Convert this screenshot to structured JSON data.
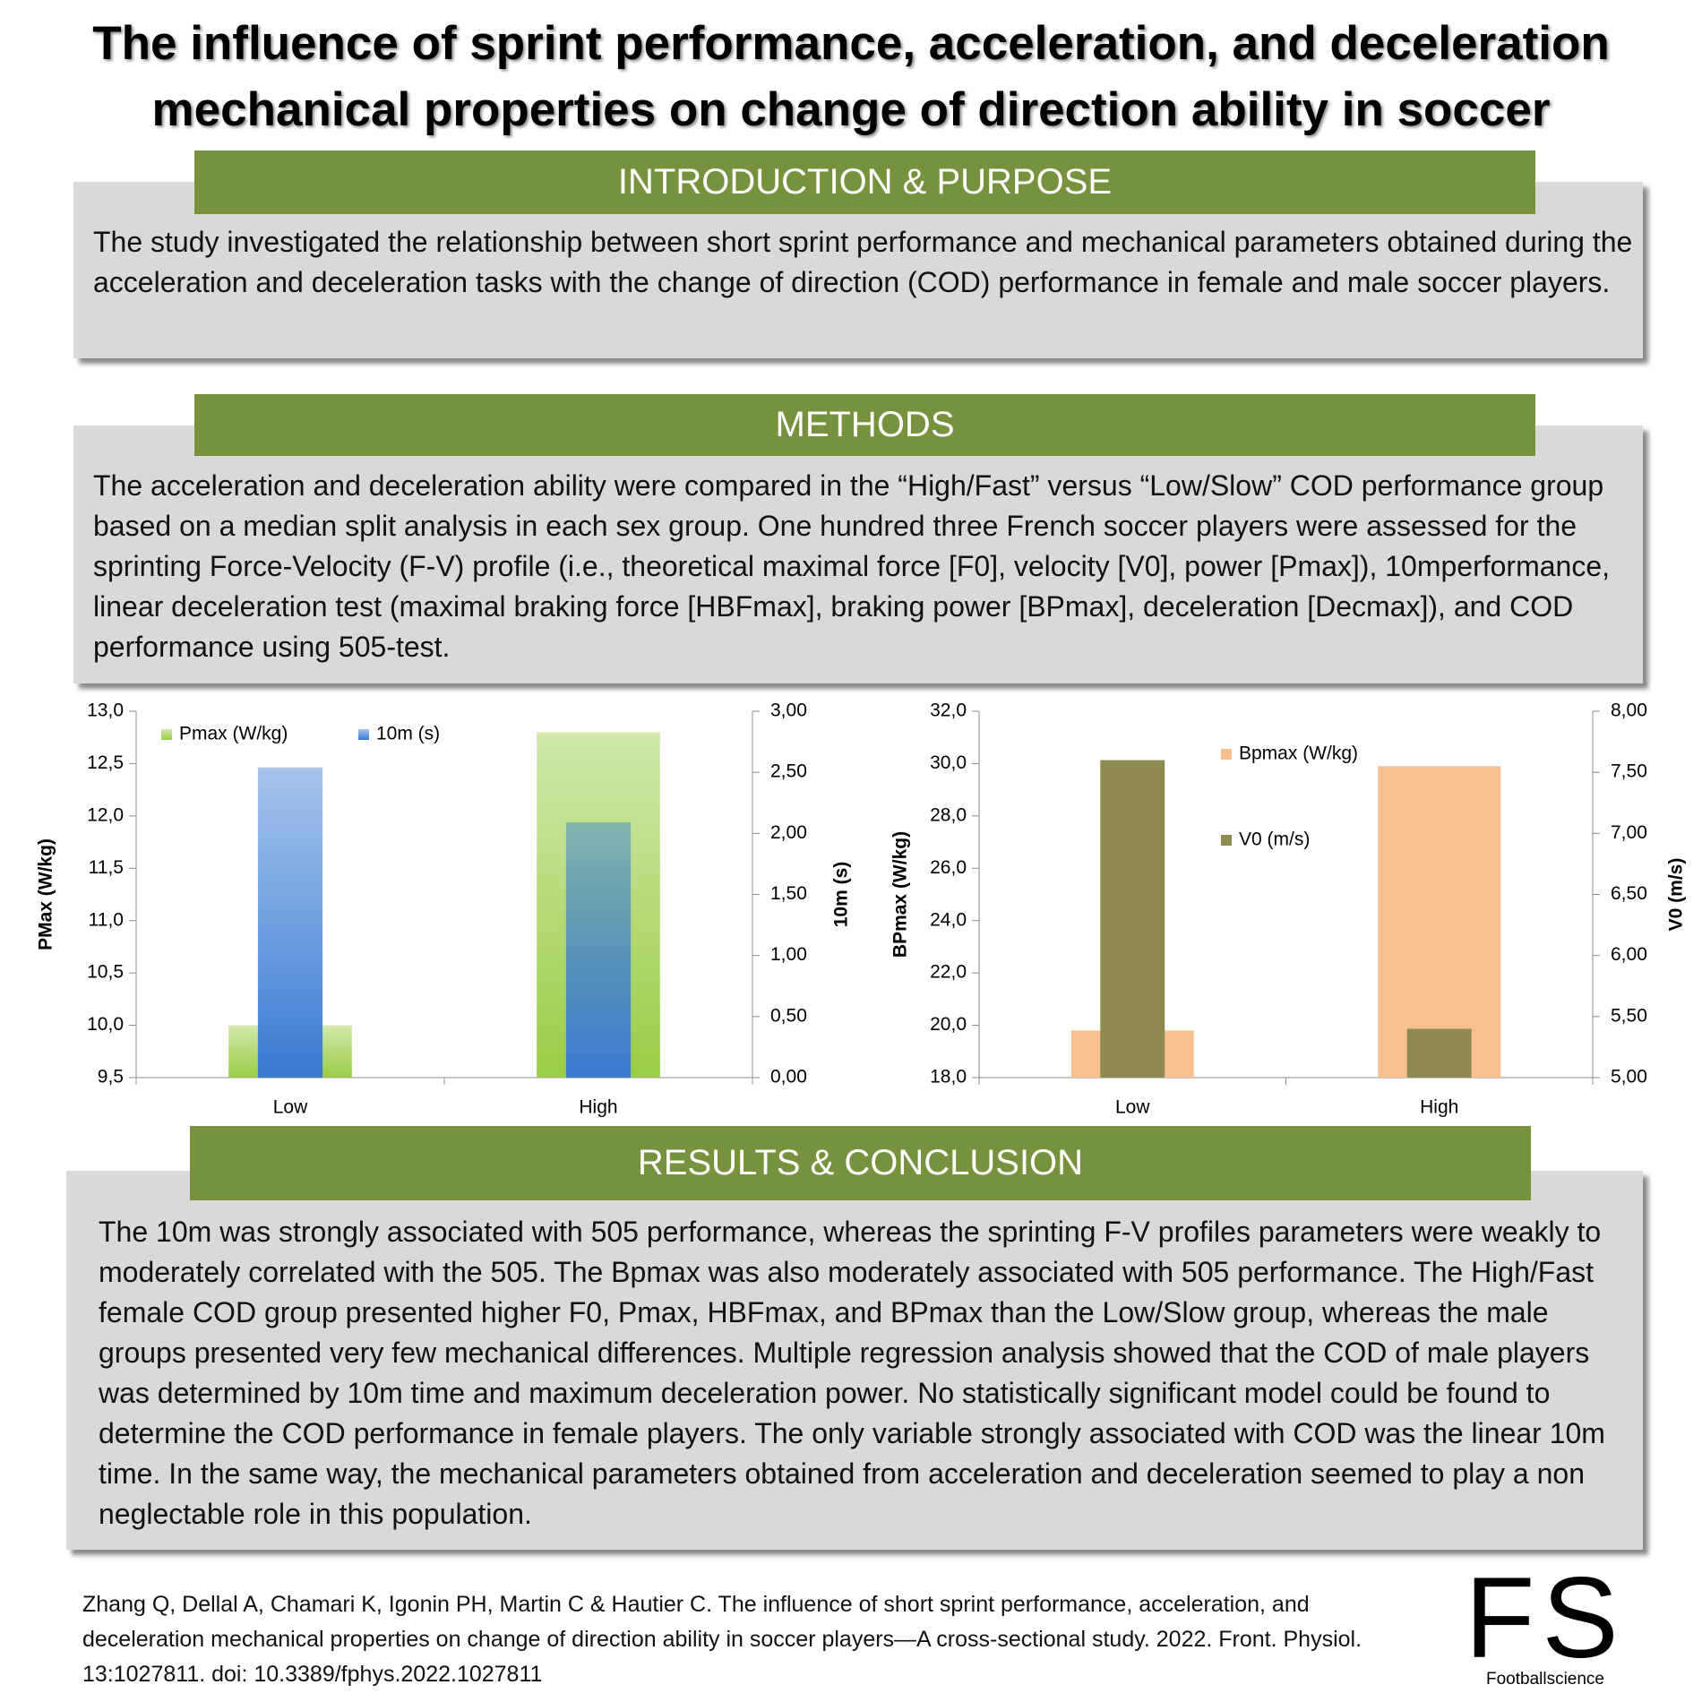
{
  "header": {
    "title": "The influence of sprint performance, acceleration, and deceleration mechanical properties on change of direction ability in soccer"
  },
  "sections": [
    {
      "heading": "INTRODUCTION & PURPOSE",
      "text": "The study investigated the relationship between short sprint performance and mechanical parameters obtained during the acceleration and deceleration tasks with the change of direction (COD) performance in female and male soccer players."
    },
    {
      "heading": "METHODS",
      "text": "The acceleration and deceleration ability were compared in the “High/Fast” versus “Low/Slow” COD performance group based on a median split analysis in each sex group. One hundred three French soccer players were assessed for the sprinting Force-Velocity (F-V) profile (i.e., theoretical maximal force [F0], velocity [V0], power [Pmax]), 10mperformance, linear deceleration test (maximal braking force [HBFmax], braking power [BPmax], deceleration [Decmax]), and COD performance using 505-test."
    },
    {
      "heading": "RESULTS & CONCLUSION",
      "text": "The 10m was strongly associated with 505 performance, whereas the sprinting F-V profiles parameters were weakly to moderately correlated with the 505. The Bpmax was also moderately associated with 505 performance. The High/Fast female COD group presented higher F0, Pmax, HBFmax, and BPmax than the Low/Slow group, whereas the male groups presented very few mechanical differences. Multiple regression analysis showed that the COD of male players was determined by 10m time and maximum deceleration power. No statistically significant model could be found to determine the COD performance in female players. The only variable strongly associated with COD was the linear 10m time. In the same way, the mechanical parameters obtained from acceleration and deceleration seemed to play a non neglectable role in this population."
    }
  ],
  "chart_data": [
    {
      "type": "bar",
      "categories": [
        "Low",
        "High"
      ],
      "y_label": "PMax (W/kg)",
      "y2_label": "10m (s)",
      "legend": "upper left",
      "gradient": true,
      "series": [
        {
          "name": "Pmax (W/kg)",
          "color": "#9acd45",
          "values": [
            10.0,
            12.8
          ]
        },
        {
          "name": "10m (s)",
          "color": "#3a7bd5",
          "values": [
            2.54,
            2.09
          ],
          "axis": "y2"
        }
      ],
      "ylim": [
        9.5,
        13.0
      ],
      "yticks": [
        {
          "value": 9.5,
          "label": "9,5"
        },
        {
          "value": 10.0,
          "label": "10,0"
        },
        {
          "value": 10.5,
          "label": "10,5"
        },
        {
          "value": 11.0,
          "label": "11,0"
        },
        {
          "value": 11.5,
          "label": "11,5"
        },
        {
          "value": 12.0,
          "label": "12,0"
        },
        {
          "value": 12.5,
          "label": "12,5"
        },
        {
          "value": 13.0,
          "label": "13,0"
        }
      ],
      "y2lim": [
        0,
        3
      ],
      "y2ticks": [
        {
          "value": 0,
          "label": "0,00"
        },
        {
          "value": 0.5,
          "label": "0,50"
        },
        {
          "value": 1,
          "label": "1,00"
        },
        {
          "value": 1.5,
          "label": "1,50"
        },
        {
          "value": 2,
          "label": "2,00"
        },
        {
          "value": 2.5,
          "label": "2,50"
        },
        {
          "value": 3,
          "label": "3,00"
        }
      ]
    },
    {
      "type": "bar",
      "categories": [
        "Low",
        "High"
      ],
      "y_label": "BPmax (W/kg)",
      "y2_label": "V0 (m/s)",
      "legend": "upper right",
      "gradient": false,
      "series": [
        {
          "name": "Bpmax (W/kg)",
          "color": "#f8c08f",
          "values": [
            19.8,
            29.9
          ]
        },
        {
          "name": "V0 (m/s)",
          "color": "#8f8a52",
          "values": [
            7.6,
            5.4
          ],
          "axis": "y2"
        }
      ],
      "ylim": [
        18,
        32
      ],
      "yticks": [
        {
          "value": 18,
          "label": "18,0"
        },
        {
          "value": 20,
          "label": "20,0"
        },
        {
          "value": 22,
          "label": "22,0"
        },
        {
          "value": 24,
          "label": "24,0"
        },
        {
          "value": 26,
          "label": "26,0"
        },
        {
          "value": 28,
          "label": "28,0"
        },
        {
          "value": 30,
          "label": "30,0"
        },
        {
          "value": 32,
          "label": "32,0"
        }
      ],
      "y2lim": [
        5,
        8
      ],
      "y2ticks": [
        {
          "value": 5,
          "label": "5,00"
        },
        {
          "value": 5.5,
          "label": "5,50"
        },
        {
          "value": 6,
          "label": "6,00"
        },
        {
          "value": 6.5,
          "label": "6,50"
        },
        {
          "value": 7,
          "label": "7,00"
        },
        {
          "value": 7.5,
          "label": "7,50"
        },
        {
          "value": 8,
          "label": "8,00"
        }
      ]
    }
  ],
  "citation": "Zhang Q, Dellal A, Chamari K, Igonin PH, Martin C & Hautier C. The influence of short sprint performance, acceleration, and deceleration mechanical properties on change of direction ability in soccer players—A cross-sectional study. 2022. Front. Physiol. 13:1027811. doi: 10.3389/fphys.2022.1027811",
  "logo": {
    "mark": "FS",
    "name": "Footballscience"
  }
}
